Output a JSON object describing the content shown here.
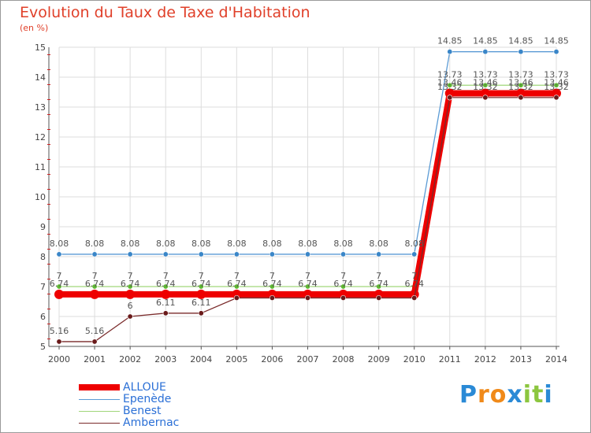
{
  "title": "Evolution du Taux de Taxe d'Habitation",
  "unit": "(en %)",
  "brand": {
    "text": "Proxiti",
    "letters": [
      "P",
      "r",
      "o",
      "x",
      "i",
      "t",
      "i"
    ],
    "letter_colors": [
      "#2a8ad6",
      "#f08a1a",
      "#f08a1a",
      "#2a8ad6",
      "#8cc63f",
      "#8cc63f",
      "#2a8ad6"
    ]
  },
  "colors": {
    "title": "#e0402a",
    "grid": "#dddddd",
    "axis": "#555555",
    "tick_red": "#cc2222",
    "legend_text": "#2a6fd6"
  },
  "chart_data": {
    "type": "line",
    "title": "Evolution du Taux de Taxe d'Habitation",
    "ylabel": "(en %)",
    "xlabel": "",
    "x": [
      "2000",
      "2001",
      "2002",
      "2003",
      "2004",
      "2005",
      "2006",
      "2007",
      "2008",
      "2009",
      "2010",
      "2011",
      "2012",
      "2013",
      "2014"
    ],
    "ylim": [
      5,
      15
    ],
    "yticks": [
      "5",
      "6",
      "7",
      "8",
      "9",
      "10",
      "11",
      "12",
      "13",
      "14",
      "15"
    ],
    "grid": true,
    "legend_position": "bottom-left",
    "series": [
      {
        "name": "Epenède",
        "color": "#5b9bd5",
        "point_color": "#3a86c8",
        "values": [
          8.08,
          8.08,
          8.08,
          8.08,
          8.08,
          8.08,
          8.08,
          8.08,
          8.08,
          8.08,
          8.08,
          14.85,
          14.85,
          14.85,
          14.85
        ],
        "labels": [
          "8.08",
          "8.08",
          "8.08",
          "8.08",
          "8.08",
          "8.08",
          "8.08",
          "8.08",
          "8.08",
          "8.08",
          "8.08",
          "14.85",
          "14.85",
          "14.85",
          "14.85"
        ]
      },
      {
        "name": "Benest",
        "color": "#a0d67a",
        "point_color": "#5fb832",
        "values": [
          7,
          7,
          7,
          7,
          7,
          7,
          7,
          7,
          7,
          7,
          7,
          13.73,
          13.73,
          13.73,
          13.73
        ],
        "labels": [
          "7",
          "7",
          "7",
          "7",
          "7",
          "7",
          "7",
          "7",
          "7",
          "7",
          "7",
          "13.73",
          "13.73",
          "13.73",
          "13.73"
        ]
      },
      {
        "name": "ALLOUE",
        "color": "#ee0000",
        "point_color": "#ee0000",
        "values": [
          6.74,
          6.74,
          6.74,
          6.74,
          6.74,
          6.74,
          6.74,
          6.74,
          6.74,
          6.74,
          6.74,
          13.46,
          13.46,
          13.46,
          13.46
        ],
        "labels": [
          "6.74",
          "6.74",
          "6.74",
          "6.74",
          "6.74",
          "6.74",
          "6.74",
          "6.74",
          "6.74",
          "6.74",
          "6.74",
          "13.46",
          "13.46",
          "13.46",
          "13.46"
        ]
      },
      {
        "name": "Ambernac",
        "color": "#7a2a2a",
        "point_color": "#6a1a1a",
        "values": [
          5.16,
          5.16,
          6,
          6.11,
          6.11,
          6.62,
          6.62,
          6.62,
          6.62,
          6.62,
          6.62,
          13.32,
          13.32,
          13.32,
          13.32
        ],
        "labels": [
          "5.16",
          "5.16",
          "6",
          "6.11",
          "6.11",
          "",
          "",
          "",
          "",
          "",
          "",
          "13.32",
          "13.32",
          "13.32",
          "13.32"
        ]
      }
    ]
  },
  "legend": [
    {
      "name": "ALLOUE",
      "color": "#ee0000",
      "thickness": 8
    },
    {
      "name": "Epenède",
      "color": "#5b9bd5",
      "thickness": 1
    },
    {
      "name": "Benest",
      "color": "#a0d67a",
      "thickness": 1
    },
    {
      "name": "Ambernac",
      "color": "#7a2a2a",
      "thickness": 1
    }
  ]
}
